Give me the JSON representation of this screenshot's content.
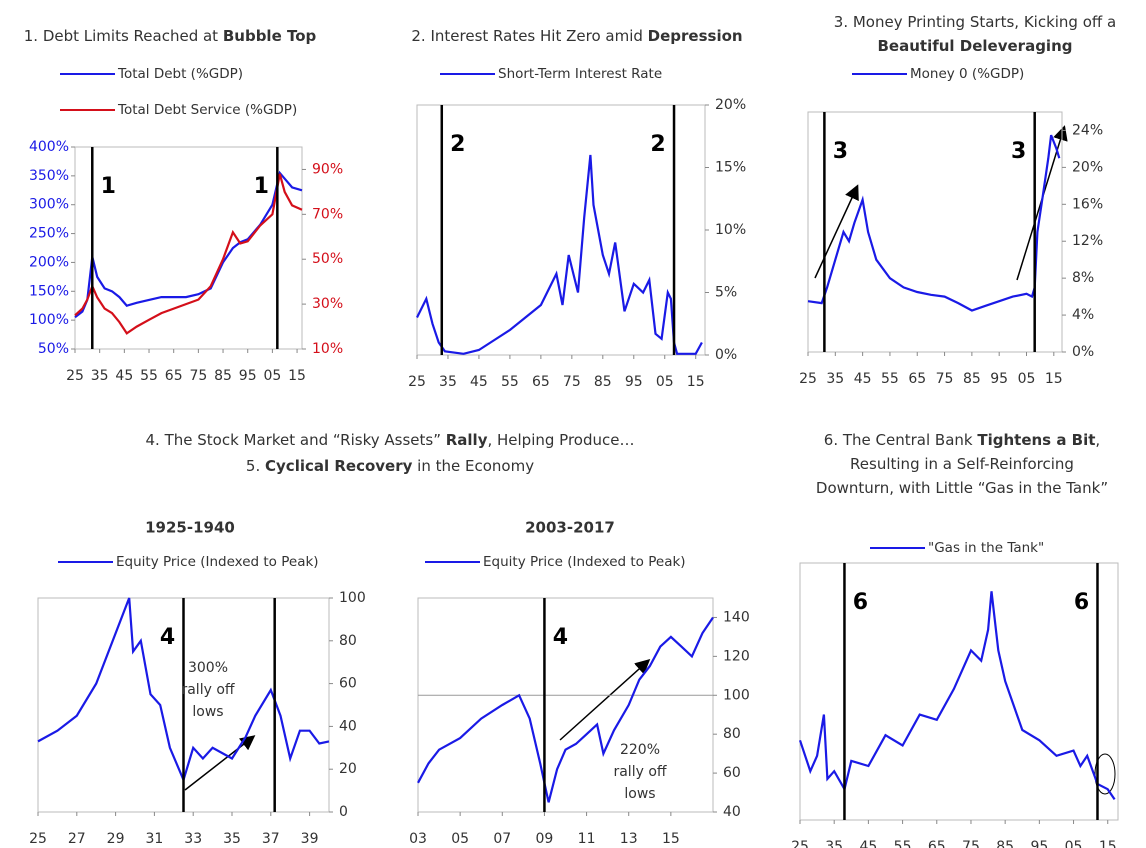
{
  "group_title": [
    [
      {
        "text": "4. The Stock Market and “Risky Assets” ",
        "bold": false
      },
      {
        "text": "Rally",
        "bold": true
      },
      {
        "text": ", Helping Produce…",
        "bold": false
      }
    ],
    [
      {
        "text": "5. ",
        "bold": false
      },
      {
        "text": "Cyclical Recovery",
        "bold": true
      },
      {
        "text": " in the Economy",
        "bold": false
      }
    ]
  ],
  "chart_data": [
    {
      "type": "line",
      "title": [
        [
          {
            "text": "1. Debt Limits Reached at ",
            "bold": false
          },
          {
            "text": "Bubble Top",
            "bold": true
          }
        ]
      ],
      "x": [
        1925,
        1928,
        1930,
        1932,
        1934,
        1937,
        1940,
        1943,
        1946,
        1950,
        1955,
        1960,
        1965,
        1970,
        1975,
        1980,
        1985,
        1989,
        1992,
        1995,
        2000,
        2005,
        2008,
        2010,
        2013,
        2017
      ],
      "series": [
        {
          "name": "Total Debt (%GDP)",
          "color": "#1a1ae6",
          "values": [
            105,
            115,
            135,
            210,
            175,
            155,
            150,
            140,
            125,
            130,
            135,
            140,
            140,
            140,
            145,
            155,
            200,
            225,
            235,
            240,
            265,
            300,
            355,
            345,
            330,
            325
          ]
        },
        {
          "name": "Total Debt Service (%GDP)",
          "color": "#d40f1a",
          "axis": "y2",
          "values": [
            25,
            28,
            32,
            38,
            33,
            28,
            26,
            22,
            17,
            20,
            23,
            26,
            28,
            30,
            32,
            38,
            50,
            62,
            57,
            58,
            65,
            70,
            88,
            80,
            74,
            72
          ]
        }
      ],
      "xlim": [
        1925,
        2017
      ],
      "xticks": [
        {
          "value": 1925,
          "label": "25"
        },
        {
          "value": 1935,
          "label": "35"
        },
        {
          "value": 1945,
          "label": "45"
        },
        {
          "value": 1955,
          "label": "55"
        },
        {
          "value": 1965,
          "label": "65"
        },
        {
          "value": 1975,
          "label": "75"
        },
        {
          "value": 1985,
          "label": "85"
        },
        {
          "value": 1995,
          "label": "95"
        },
        {
          "value": 2005,
          "label": "05"
        },
        {
          "value": 2015,
          "label": "15"
        }
      ],
      "yaxis": "left",
      "ytick_color": "#1a1ae6",
      "y2tick_color": "#d40f1a",
      "ylim": [
        50,
        400
      ],
      "yticks": [
        {
          "value": 50,
          "label": "50%"
        },
        {
          "value": 100,
          "label": "100%"
        },
        {
          "value": 150,
          "label": "150%"
        },
        {
          "value": 200,
          "label": "200%"
        },
        {
          "value": 250,
          "label": "250%"
        },
        {
          "value": 300,
          "label": "300%"
        },
        {
          "value": 350,
          "label": "350%"
        },
        {
          "value": 400,
          "label": "400%"
        }
      ],
      "y2lim": [
        10,
        100
      ],
      "y2ticks": [
        {
          "value": 10,
          "label": "10%"
        },
        {
          "value": 30,
          "label": "30%"
        },
        {
          "value": 50,
          "label": "50%"
        },
        {
          "value": 70,
          "label": "70%"
        },
        {
          "value": 90,
          "label": "90%"
        }
      ],
      "markers": [
        {
          "x": 1932,
          "label": "1"
        },
        {
          "x": 2007,
          "label": "1"
        }
      ]
    },
    {
      "type": "line",
      "title": [
        [
          {
            "text": "2. Interest Rates Hit Zero amid ",
            "bold": false
          },
          {
            "text": "Depression",
            "bold": true
          }
        ]
      ],
      "x": [
        1925,
        1928,
        1930,
        1932,
        1934,
        1940,
        1945,
        1950,
        1955,
        1960,
        1965,
        1970,
        1972,
        1974,
        1977,
        1979,
        1981,
        1982,
        1985,
        1987,
        1989,
        1992,
        1995,
        1998,
        2000,
        2002,
        2004,
        2006,
        2007,
        2008,
        2009,
        2015,
        2017
      ],
      "series": [
        {
          "name": "Short-Term Interest Rate",
          "color": "#1a1ae6",
          "values": [
            3,
            4.5,
            2.5,
            1,
            0.3,
            0.1,
            0.4,
            1.2,
            2,
            3,
            4,
            6.5,
            4,
            8,
            5,
            11,
            16,
            12,
            8,
            6.5,
            9,
            3.5,
            5.7,
            5,
            6,
            1.7,
            1.3,
            5,
            4.5,
            1,
            0.1,
            0.1,
            1
          ]
        }
      ],
      "xlim": [
        1925,
        2018
      ],
      "xticks": [
        {
          "value": 1925,
          "label": "25"
        },
        {
          "value": 1935,
          "label": "35"
        },
        {
          "value": 1945,
          "label": "45"
        },
        {
          "value": 1955,
          "label": "55"
        },
        {
          "value": 1965,
          "label": "65"
        },
        {
          "value": 1975,
          "label": "75"
        },
        {
          "value": 1985,
          "label": "85"
        },
        {
          "value": 1995,
          "label": "95"
        },
        {
          "value": 2005,
          "label": "05"
        },
        {
          "value": 2015,
          "label": "15"
        }
      ],
      "yaxis": "right",
      "ylim": [
        0,
        20
      ],
      "yticks": [
        {
          "value": 0,
          "label": "0%"
        },
        {
          "value": 5,
          "label": "5%"
        },
        {
          "value": 10,
          "label": "10%"
        },
        {
          "value": 15,
          "label": "15%"
        },
        {
          "value": 20,
          "label": "20%"
        }
      ],
      "markers": [
        {
          "x": 1933,
          "label": "2"
        },
        {
          "x": 2008,
          "label": "2"
        }
      ]
    },
    {
      "type": "line",
      "title": [
        [
          {
            "text": "3. Money Printing Starts, Kicking off a",
            "bold": false
          }
        ],
        [
          {
            "text": "Beautiful Deleveraging",
            "bold": true
          }
        ]
      ],
      "x": [
        1925,
        1930,
        1932,
        1935,
        1938,
        1940,
        1942,
        1945,
        1947,
        1950,
        1955,
        1960,
        1965,
        1970,
        1975,
        1980,
        1985,
        1990,
        1995,
        2000,
        2005,
        2007,
        2008,
        2009,
        2011,
        2013,
        2014,
        2016,
        2017
      ],
      "series": [
        {
          "name": "Money 0 (%GDP)",
          "color": "#1a1ae6",
          "values": [
            5.5,
            5.3,
            7,
            10,
            13,
            12,
            14,
            16.5,
            13,
            10,
            8,
            7,
            6.5,
            6.2,
            6,
            5.3,
            4.5,
            5,
            5.5,
            6,
            6.3,
            6,
            7,
            13,
            17,
            21,
            23.5,
            22,
            21
          ]
        }
      ],
      "xlim": [
        1925,
        2018
      ],
      "xticks": [
        {
          "value": 1925,
          "label": "25"
        },
        {
          "value": 1935,
          "label": "35"
        },
        {
          "value": 1945,
          "label": "45"
        },
        {
          "value": 1955,
          "label": "55"
        },
        {
          "value": 1965,
          "label": "65"
        },
        {
          "value": 1975,
          "label": "75"
        },
        {
          "value": 1985,
          "label": "85"
        },
        {
          "value": 1995,
          "label": "95"
        },
        {
          "value": 2005,
          "label": "05"
        },
        {
          "value": 2015,
          "label": "15"
        }
      ],
      "yaxis": "right",
      "ylim": [
        0,
        26
      ],
      "yticks": [
        {
          "value": 0,
          "label": "0%"
        },
        {
          "value": 4,
          "label": "4%"
        },
        {
          "value": 8,
          "label": "8%"
        },
        {
          "value": 12,
          "label": "12%"
        },
        {
          "value": 16,
          "label": "16%"
        },
        {
          "value": 20,
          "label": "20%"
        },
        {
          "value": 24,
          "label": "24%"
        }
      ],
      "markers": [
        {
          "x": 1931,
          "label": "3"
        },
        {
          "x": 2008,
          "label": "3"
        }
      ]
    },
    {
      "type": "line",
      "subtitle": "1925-1940",
      "x": [
        1925,
        1926,
        1927,
        1928,
        1929.7,
        1929.9,
        1930.3,
        1930.8,
        1931.3,
        1931.8,
        1932.5,
        1933,
        1933.5,
        1934,
        1935,
        1935.7,
        1936.2,
        1937,
        1937.5,
        1938,
        1938.5,
        1939,
        1939.5,
        1940
      ],
      "series": [
        {
          "name": "Equity Price (Indexed to Peak)",
          "color": "#1a1ae6",
          "values": [
            33,
            38,
            45,
            60,
            100,
            75,
            80,
            55,
            50,
            30,
            15,
            30,
            25,
            30,
            25,
            35,
            45,
            57,
            45,
            25,
            38,
            38,
            32,
            33
          ]
        }
      ],
      "xlim": [
        1925,
        1940
      ],
      "xticks": [
        {
          "value": 1925,
          "label": "25"
        },
        {
          "value": 1927,
          "label": "27"
        },
        {
          "value": 1929,
          "label": "29"
        },
        {
          "value": 1931,
          "label": "31"
        },
        {
          "value": 1933,
          "label": "33"
        },
        {
          "value": 1935,
          "label": "35"
        },
        {
          "value": 1937,
          "label": "37"
        },
        {
          "value": 1939,
          "label": "39"
        }
      ],
      "yaxis": "right",
      "ylim": [
        0,
        100
      ],
      "yticks": [
        0,
        20,
        40,
        60,
        80,
        100
      ],
      "markers": [
        {
          "x": 1932.5,
          "label": "4"
        },
        {
          "x": 1937.2
        }
      ],
      "annotation": [
        "300%",
        "rally off",
        "lows"
      ]
    },
    {
      "type": "line",
      "subtitle": "2003-2017",
      "x": [
        2003,
        2003.5,
        2004,
        2005,
        2006,
        2007,
        2007.8,
        2008.3,
        2008.8,
        2009.2,
        2009.6,
        2010,
        2010.5,
        2011,
        2011.5,
        2011.8,
        2012.3,
        2013,
        2013.5,
        2014,
        2014.5,
        2015,
        2015.5,
        2016,
        2016.5,
        2017
      ],
      "series": [
        {
          "name": "Equity Price (Indexed to Peak)",
          "color": "#1a1ae6",
          "values": [
            55,
            65,
            72,
            78,
            88,
            95,
            100,
            88,
            65,
            45,
            62,
            72,
            75,
            80,
            85,
            70,
            82,
            95,
            108,
            115,
            125,
            130,
            125,
            120,
            132,
            140
          ]
        }
      ],
      "xlim": [
        2003,
        2017
      ],
      "xticks": [
        {
          "value": 2003,
          "label": "03"
        },
        {
          "value": 2005,
          "label": "05"
        },
        {
          "value": 2007,
          "label": "07"
        },
        {
          "value": 2009,
          "label": "09"
        },
        {
          "value": 2011,
          "label": "11"
        },
        {
          "value": 2013,
          "label": "13"
        },
        {
          "value": 2015,
          "label": "15"
        }
      ],
      "yaxis": "right",
      "ylim": [
        40,
        150
      ],
      "yticks": [
        40,
        60,
        80,
        100,
        120,
        140
      ],
      "reference_line": 100,
      "markers": [
        {
          "x": 2009,
          "label": "4"
        }
      ],
      "annotation": [
        "220%",
        "rally off",
        "lows"
      ]
    },
    {
      "type": "line",
      "title": [
        [
          {
            "text": "6. The Central Bank ",
            "bold": false
          },
          {
            "text": "Tightens a Bit",
            "bold": true
          },
          {
            "text": ",",
            "bold": false
          }
        ],
        [
          {
            "text": "Resulting in a Self-Reinforcing",
            "bold": false
          }
        ],
        [
          {
            "text": "Downturn, with Little “Gas in the Tank”",
            "bold": false
          }
        ]
      ],
      "x": [
        1925,
        1928,
        1930,
        1932,
        1933,
        1935,
        1938,
        1940,
        1945,
        1950,
        1955,
        1960,
        1965,
        1970,
        1975,
        1978,
        1980,
        1981,
        1983,
        1985,
        1990,
        1995,
        2000,
        2005,
        2007,
        2009,
        2012,
        2015,
        2017
      ],
      "series": [
        {
          "name": "\"Gas in the Tank\"",
          "color": "#1a1ae6",
          "values": [
            31,
            19,
            25,
            41,
            16,
            19,
            12,
            23,
            21,
            33,
            29,
            41,
            39,
            51,
            66,
            62,
            74,
            89,
            66,
            54,
            35,
            31,
            25,
            27,
            21,
            25,
            14,
            12,
            8
          ]
        }
      ],
      "xlim": [
        1925,
        2018
      ],
      "xticks": [
        {
          "value": 1925,
          "label": "25"
        },
        {
          "value": 1935,
          "label": "35"
        },
        {
          "value": 1945,
          "label": "45"
        },
        {
          "value": 1955,
          "label": "55"
        },
        {
          "value": 1965,
          "label": "65"
        },
        {
          "value": 1975,
          "label": "75"
        },
        {
          "value": 1985,
          "label": "85"
        },
        {
          "value": 1995,
          "label": "95"
        },
        {
          "value": 2005,
          "label": "05"
        },
        {
          "value": 2015,
          "label": "15"
        }
      ],
      "ylim": [
        0,
        100
      ],
      "markers": [
        {
          "x": 1938,
          "label": "6"
        },
        {
          "x": 2012,
          "label": "6"
        }
      ]
    }
  ]
}
